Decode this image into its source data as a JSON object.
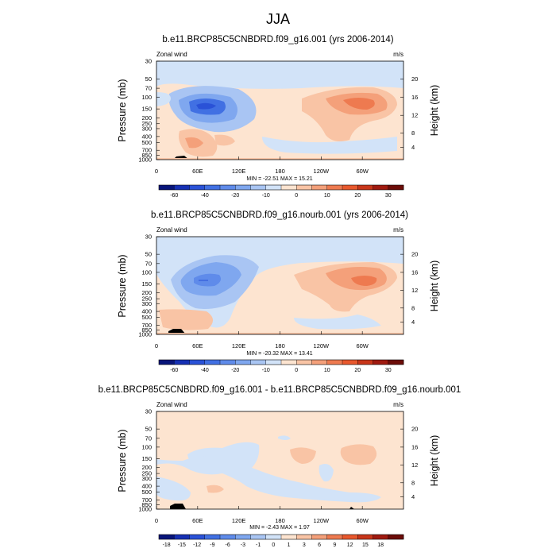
{
  "main_title": "JJA",
  "chart_data": [
    {
      "type": "contour",
      "title": "b.e11.BRCP85C5CNBDRD.f09_g16.001 (yrs 2006-2014)",
      "left_label": "Zonal wind",
      "right_label": "m/s",
      "ylabel": "Pressure (mb)",
      "ylabel_right": "Height (km)",
      "pressure_ticks": [
        "30",
        "50",
        "70",
        "100",
        "150",
        "200",
        "250",
        "300",
        "400",
        "500",
        "700",
        "850",
        "1000"
      ],
      "height_ticks": [
        "20",
        "16",
        "12",
        "8",
        "4"
      ],
      "lon_ticks": [
        "0",
        "60E",
        "120E",
        "180",
        "120W",
        "60W"
      ],
      "stats": "MIN = -22.51  MAX =  15.21",
      "min": -22.51,
      "max": 15.21,
      "colorbar_ticks": [
        "-60",
        "-40",
        "-20",
        "-10",
        "0",
        "10",
        "20",
        "30"
      ],
      "colorbar_colors": [
        "#08157a",
        "#1630b4",
        "#2a52d7",
        "#4170e3",
        "#5f8bea",
        "#7fa7ef",
        "#a9c5f3",
        "#d2e3f8",
        "#fde4d0",
        "#f9c4a5",
        "#f4a07a",
        "#ee7a50",
        "#e8582d",
        "#c8361a",
        "#a01a10",
        "#6c0c08"
      ],
      "features": {
        "jet_east_peak": 15.21,
        "jet_west_peak": -22.51
      }
    },
    {
      "type": "contour",
      "title": "b.e11.BRCP85C5CNBDRD.f09_g16.nourb.001 (yrs 2006-2014)",
      "left_label": "Zonal wind",
      "right_label": "m/s",
      "ylabel": "Pressure (mb)",
      "ylabel_right": "Height (km)",
      "pressure_ticks": [
        "30",
        "50",
        "70",
        "100",
        "150",
        "200",
        "250",
        "300",
        "400",
        "500",
        "700",
        "850",
        "1000"
      ],
      "height_ticks": [
        "20",
        "16",
        "12",
        "8",
        "4"
      ],
      "lon_ticks": [
        "0",
        "60E",
        "120E",
        "180",
        "120W",
        "60W"
      ],
      "stats": "MIN = -20.32  MAX =  13.41",
      "min": -20.32,
      "max": 13.41,
      "colorbar_ticks": [
        "-60",
        "-40",
        "-20",
        "-10",
        "0",
        "10",
        "20",
        "30"
      ],
      "colorbar_colors": [
        "#08157a",
        "#1630b4",
        "#2a52d7",
        "#4170e3",
        "#5f8bea",
        "#7fa7ef",
        "#a9c5f3",
        "#d2e3f8",
        "#fde4d0",
        "#f9c4a5",
        "#f4a07a",
        "#ee7a50",
        "#e8582d",
        "#c8361a",
        "#a01a10",
        "#6c0c08"
      ]
    },
    {
      "type": "contour",
      "title": "b.e11.BRCP85C5CNBDRD.f09_g16.001 - b.e11.BRCP85C5CNBDRD.f09_g16.nourb.001",
      "left_label": "Zonal wind",
      "right_label": "m/s",
      "ylabel": "Pressure (mb)",
      "ylabel_right": "Height (km)",
      "pressure_ticks": [
        "30",
        "50",
        "70",
        "100",
        "150",
        "200",
        "250",
        "300",
        "400",
        "500",
        "700",
        "850",
        "1000"
      ],
      "height_ticks": [
        "20",
        "16",
        "12",
        "8",
        "4"
      ],
      "lon_ticks": [
        "0",
        "60E",
        "120E",
        "180",
        "120W",
        "60W"
      ],
      "stats": "MIN =  -2.43  MAX =  1.97",
      "min": -2.43,
      "max": 1.97,
      "colorbar_ticks": [
        "-18",
        "-15",
        "-12",
        "-9",
        "-6",
        "-3",
        "-1",
        "0",
        "1",
        "3",
        "6",
        "9",
        "12",
        "15",
        "18"
      ],
      "colorbar_colors": [
        "#08157a",
        "#1630b4",
        "#2a52d7",
        "#4170e3",
        "#5f8bea",
        "#7fa7ef",
        "#a9c5f3",
        "#d2e3f8",
        "#fde4d0",
        "#f9c4a5",
        "#f4a07a",
        "#ee7a50",
        "#e8582d",
        "#c8361a",
        "#a01a10",
        "#6c0c08"
      ]
    }
  ]
}
